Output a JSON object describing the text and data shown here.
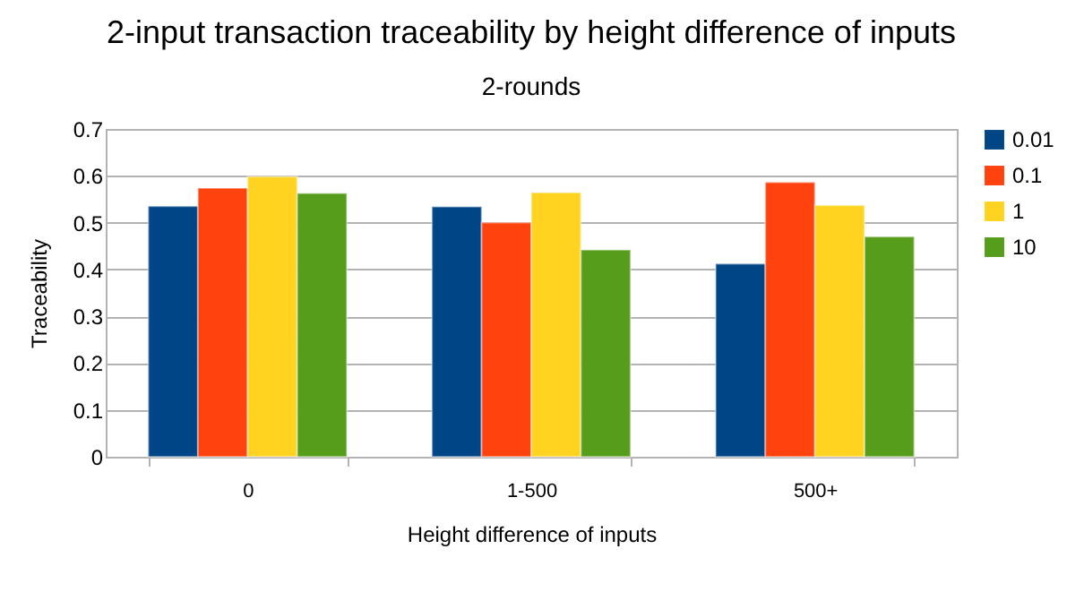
{
  "chart_data": {
    "type": "bar",
    "title": "2-input transaction traceability by height difference of inputs",
    "subtitle": "2-rounds",
    "xlabel": "Height difference of inputs",
    "ylabel": "Traceability",
    "categories": [
      "0",
      "1-500",
      "500+"
    ],
    "series": [
      {
        "name": "0.01",
        "color": "#004586",
        "values": [
          0.535,
          0.534,
          0.412
        ]
      },
      {
        "name": "0.1",
        "color": "#ff420e",
        "values": [
          0.574,
          0.5,
          0.586
        ]
      },
      {
        "name": "1",
        "color": "#ffd320",
        "values": [
          0.598,
          0.564,
          0.537
        ]
      },
      {
        "name": "10",
        "color": "#579d1c",
        "values": [
          0.563,
          0.442,
          0.47
        ]
      }
    ],
    "ylim": [
      0,
      0.7
    ],
    "yticks": [
      0,
      0.1,
      0.2,
      0.3,
      0.4,
      0.5,
      0.6,
      0.7
    ],
    "grid": "y",
    "legend": "right"
  }
}
